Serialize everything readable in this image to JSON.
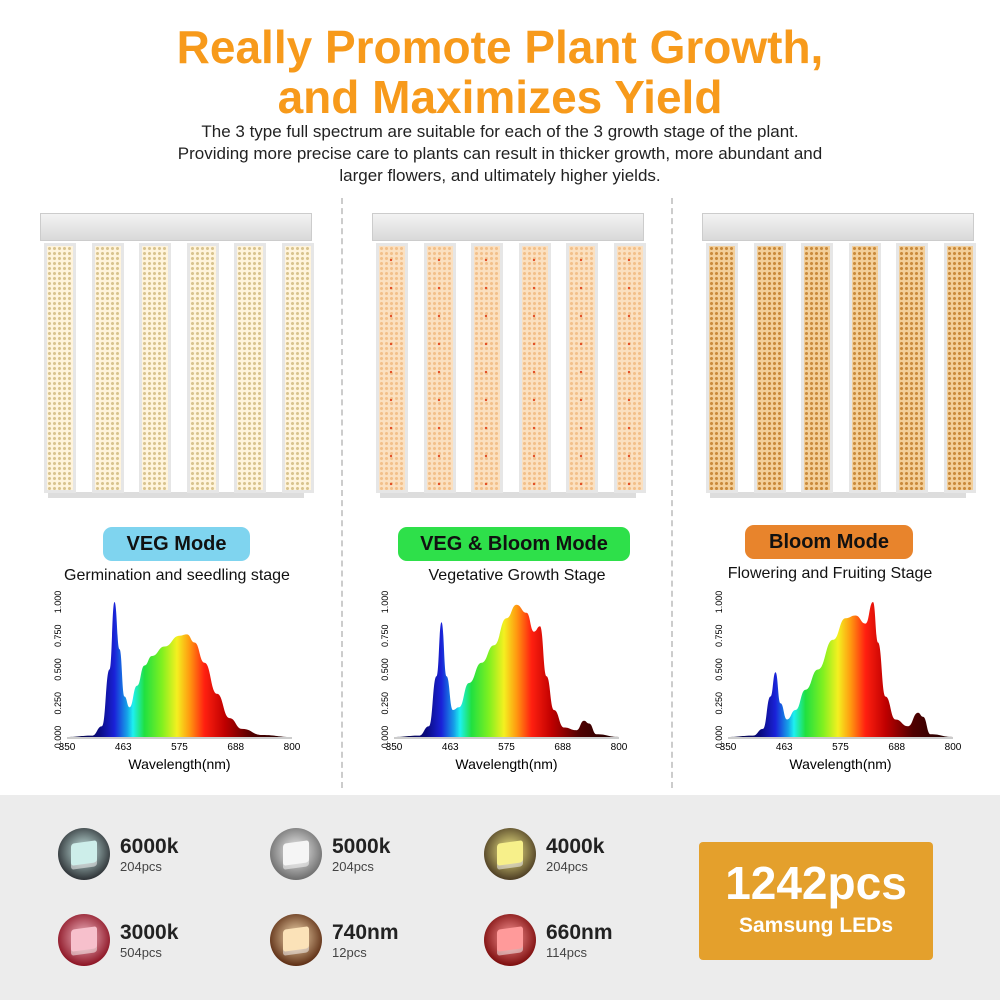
{
  "header": {
    "title_line1": "Really Promote Plant Growth,",
    "title_line2": "and Maximizes Yield",
    "subtitle_line1": "The 3 type full spectrum are suitable for each of the 3 growth stage of the plant.",
    "subtitle_line2": "Providing more precise care to plants can result in thicker growth, more abundant and",
    "subtitle_line3": "larger flowers, and ultimately higher yields."
  },
  "modes": [
    {
      "label": "VEG Mode",
      "stage": "Germination and seedling stage",
      "color": "#7fd4ef",
      "led_color": "#fff4dc"
    },
    {
      "label": "VEG & Bloom Mode",
      "stage": "Vegetative Growth Stage",
      "color": "#2ee04a",
      "led_color": "#fbe0c0"
    },
    {
      "label": "Bloom Mode",
      "stage": "Flowering and Fruiting Stage",
      "color": "#e8842c",
      "led_color": "#f3cf9a"
    }
  ],
  "chart_data": [
    {
      "type": "area",
      "xlabel": "Wavelength(nm)",
      "xticks": [
        "350",
        "463",
        "575",
        "688",
        "800"
      ],
      "yticks": [
        "0.000",
        "0.250",
        "0.500",
        "0.750",
        "1.000"
      ],
      "xlim": [
        350,
        800
      ],
      "ylim": [
        0,
        1
      ],
      "x": [
        350,
        400,
        420,
        435,
        445,
        455,
        465,
        475,
        490,
        505,
        520,
        545,
        575,
        590,
        605,
        625,
        650,
        675,
        700,
        740,
        800
      ],
      "y": [
        0,
        0.01,
        0.08,
        0.5,
        1.0,
        0.65,
        0.3,
        0.22,
        0.38,
        0.53,
        0.6,
        0.67,
        0.75,
        0.76,
        0.7,
        0.55,
        0.32,
        0.14,
        0.06,
        0.015,
        0
      ]
    },
    {
      "type": "area",
      "xlabel": "Wavelength(nm)",
      "xticks": [
        "350",
        "463",
        "575",
        "688",
        "800"
      ],
      "yticks": [
        "0.000",
        "0.250",
        "0.500",
        "0.750",
        "1.000"
      ],
      "xlim": [
        350,
        800
      ],
      "ylim": [
        0,
        1
      ],
      "x": [
        350,
        400,
        420,
        435,
        445,
        455,
        468,
        480,
        500,
        525,
        550,
        575,
        595,
        615,
        630,
        642,
        655,
        670,
        690,
        715,
        730,
        740,
        755,
        800
      ],
      "y": [
        0,
        0.01,
        0.08,
        0.45,
        0.85,
        0.45,
        0.2,
        0.22,
        0.4,
        0.55,
        0.68,
        0.88,
        0.98,
        0.92,
        0.78,
        0.82,
        0.45,
        0.2,
        0.07,
        0.05,
        0.12,
        0.1,
        0.02,
        0
      ]
    },
    {
      "type": "area",
      "xlabel": "Wavelength(nm)",
      "xticks": [
        "350",
        "463",
        "575",
        "688",
        "800"
      ],
      "yticks": [
        "0.000",
        "0.250",
        "0.500",
        "0.750",
        "1.000"
      ],
      "xlim": [
        350,
        800
      ],
      "ylim": [
        0,
        1
      ],
      "x": [
        350,
        400,
        420,
        435,
        445,
        455,
        468,
        485,
        505,
        530,
        560,
        585,
        605,
        625,
        640,
        650,
        665,
        685,
        710,
        730,
        740,
        755,
        800
      ],
      "y": [
        0,
        0.01,
        0.06,
        0.3,
        0.48,
        0.25,
        0.13,
        0.2,
        0.35,
        0.5,
        0.72,
        0.88,
        0.9,
        0.84,
        1.0,
        0.7,
        0.3,
        0.13,
        0.08,
        0.18,
        0.15,
        0.02,
        0
      ]
    }
  ],
  "leds": [
    {
      "name": "6000k",
      "count": "204pcs",
      "color": "#cdeeea",
      "bg": "#2b2f33"
    },
    {
      "name": "5000k",
      "count": "204pcs",
      "color": "#f5f5f5",
      "bg": "#6b6b6b"
    },
    {
      "name": "4000k",
      "count": "204pcs",
      "color": "#f7f08a",
      "bg": "#4a3a22"
    },
    {
      "name": "3000k",
      "count": "504pcs",
      "color": "#f7c0cc",
      "bg": "#8a1020"
    },
    {
      "name": "740nm",
      "count": "12pcs",
      "color": "#fbe2b8",
      "bg": "#5a2a10"
    },
    {
      "name": "660nm",
      "count": "114pcs",
      "color": "#ff9a9a",
      "bg": "#7a0a0a"
    }
  ],
  "badge": {
    "count": "1242pcs",
    "label": "Samsung LEDs",
    "color": "#e4a02c"
  }
}
